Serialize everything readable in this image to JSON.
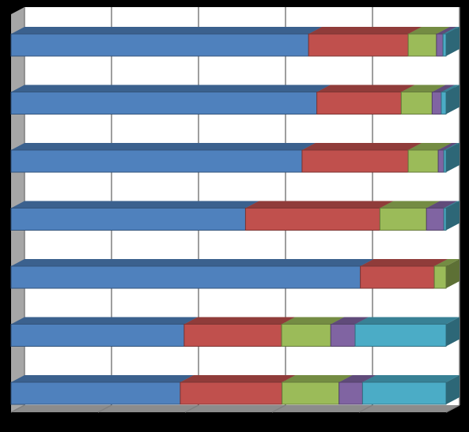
{
  "chart_data": {
    "type": "bar",
    "orientation": "horizontal",
    "stacked": "percent",
    "style": "3d",
    "title": "",
    "xlabel": "",
    "ylabel": "",
    "xlim": [
      0,
      100
    ],
    "grid": true,
    "legend": "none",
    "categories": [
      "",
      "",
      "",
      "",
      "",
      "",
      ""
    ],
    "series": [
      {
        "color": "#4F81BD",
        "values": [
          68.4,
          70.3,
          66.9,
          53.9,
          80.3,
          39.8,
          38.9
        ]
      },
      {
        "color": "#C0504D",
        "values": [
          22.9,
          19.4,
          24.4,
          30.9,
          17.0,
          22.4,
          23.4
        ]
      },
      {
        "color": "#9BBB59",
        "values": [
          6.5,
          7.1,
          6.9,
          10.7,
          2.7,
          11.3,
          13.1
        ]
      },
      {
        "color": "#8064A2",
        "values": [
          1.5,
          2.1,
          1.3,
          4.0,
          0.0,
          5.6,
          5.4
        ]
      },
      {
        "color": "#4BACC6",
        "values": [
          0.7,
          1.1,
          0.5,
          0.5,
          0.0,
          20.9,
          19.2
        ]
      }
    ]
  },
  "colors": {
    "background": "#000000",
    "plot_wall": "#FFFFFF",
    "side_wall": "#A6A6A6",
    "floor": "#8C8C8C",
    "gridline": "#7F7F7F"
  }
}
